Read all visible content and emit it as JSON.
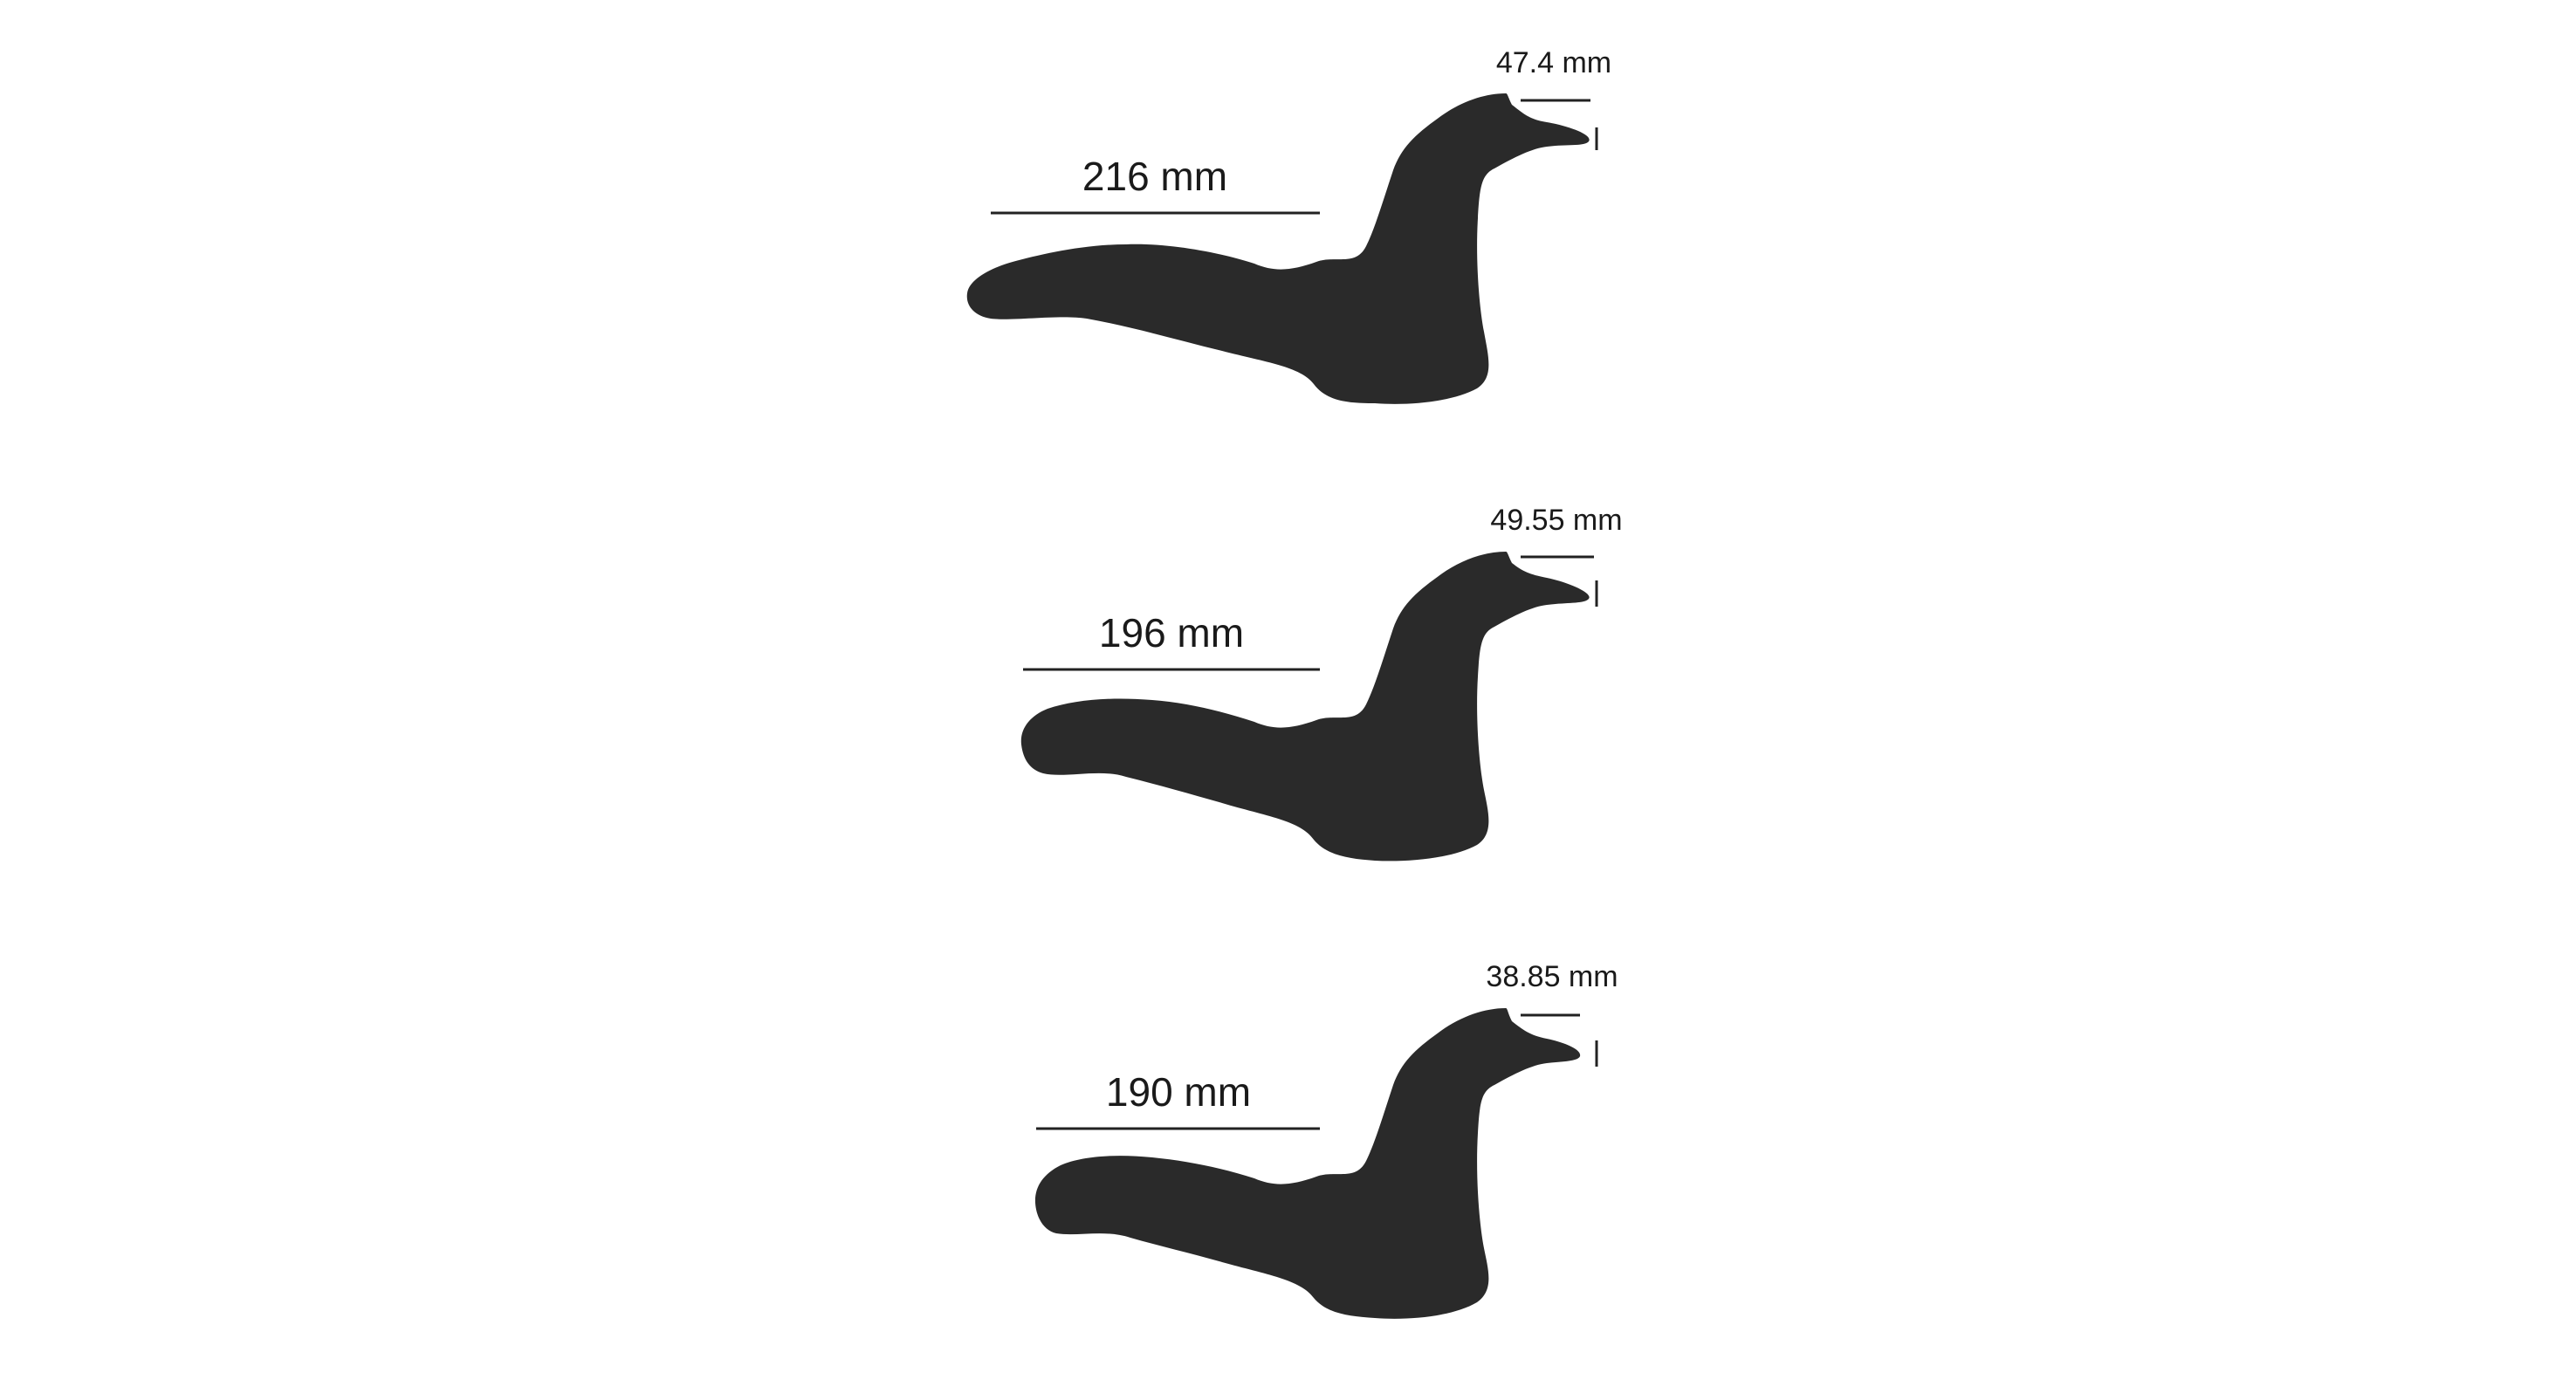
{
  "figures": [
    {
      "length_label": "216 mm",
      "beak_label": "47.4 mm"
    },
    {
      "length_label": "196 mm",
      "beak_label": "49.55 mm"
    },
    {
      "length_label": "190 mm",
      "beak_label": "38.85 mm"
    }
  ],
  "colors": {
    "silhouette": "#2a2a2a",
    "lines": "#222222",
    "text": "#1a1a1a",
    "background": "#ffffff"
  }
}
